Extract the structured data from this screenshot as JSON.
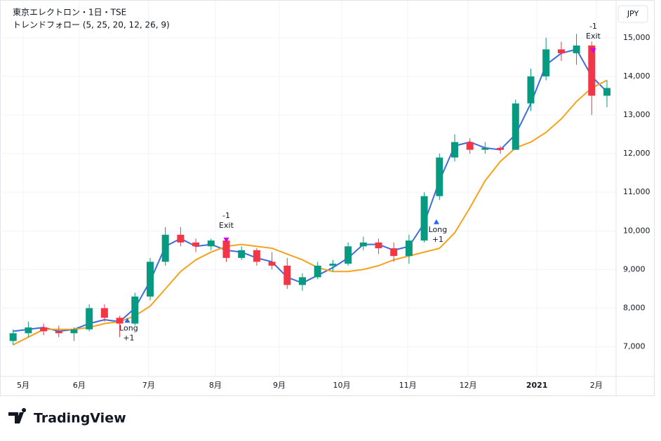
{
  "chart_data": {
    "type": "candlestick",
    "title": "東京エレクトロン・1日・TSE",
    "subtitle": "トレンドフォロー (5, 25, 20, 12, 26, 9)",
    "currency": "JPY",
    "brand": "TradingView",
    "xlim": [
      0,
      200
    ],
    "xticks": [
      {
        "value": 5.3,
        "label": "5月"
      },
      {
        "value": 23.7,
        "label": "6月"
      },
      {
        "value": 46.5,
        "label": "7月"
      },
      {
        "value": 68.4,
        "label": "8月"
      },
      {
        "value": 89.4,
        "label": "9月"
      },
      {
        "value": 109.9,
        "label": "10月"
      },
      {
        "value": 131.6,
        "label": "11月"
      },
      {
        "value": 151.4,
        "label": "12月"
      },
      {
        "value": 174,
        "label": "2021"
      },
      {
        "value": 193.5,
        "label": "2月"
      }
    ],
    "ylim": [
      6230,
      15960
    ],
    "yticks": [
      {
        "value": 7000,
        "label": "7,000"
      },
      {
        "value": 8000,
        "label": "8,000"
      },
      {
        "value": 9000,
        "label": "9,000"
      },
      {
        "value": 10000,
        "label": "10,000"
      },
      {
        "value": 11000,
        "label": "11,000"
      },
      {
        "value": 12000,
        "label": "12,000"
      },
      {
        "value": 13000,
        "label": "13,000"
      },
      {
        "value": 14000,
        "label": "14,000"
      },
      {
        "value": 15000,
        "label": "15,000"
      }
    ],
    "grid": true,
    "up_color": "#089981",
    "down_color": "#f23645",
    "x": [
      2,
      7,
      12,
      17,
      22,
      27,
      32,
      37,
      42,
      47,
      52,
      57,
      62,
      67,
      72,
      77,
      82,
      87,
      92,
      97,
      102,
      107,
      112,
      117,
      122,
      127,
      132,
      137,
      142,
      147,
      152,
      157,
      162,
      167,
      172,
      177,
      182,
      187,
      192,
      197
    ],
    "open": [
      7150,
      7350,
      7500,
      7400,
      7350,
      7450,
      8000,
      7750,
      7600,
      8300,
      9200,
      9900,
      9700,
      9600,
      9750,
      9300,
      9500,
      9200,
      9100,
      8600,
      8800,
      9100,
      9150,
      9600,
      9700,
      9550,
      9350,
      9750,
      10900,
      11900,
      12300,
      12100,
      12150,
      12100,
      13300,
      14000,
      14700,
      14600,
      14800,
      13500
    ],
    "high": [
      7450,
      7650,
      7600,
      7550,
      7500,
      8100,
      8100,
      7800,
      8400,
      9300,
      10100,
      10100,
      9800,
      9800,
      9800,
      9600,
      9550,
      9450,
      9300,
      8900,
      9200,
      9250,
      9700,
      9850,
      9800,
      9700,
      9900,
      11000,
      12000,
      12500,
      12400,
      12300,
      12200,
      13400,
      14200,
      15000,
      14900,
      15100,
      14900,
      13900
    ],
    "low": [
      7050,
      7250,
      7300,
      7250,
      7150,
      7400,
      7650,
      7250,
      7550,
      8200,
      9100,
      9600,
      9450,
      9500,
      9200,
      9250,
      9100,
      9000,
      8500,
      8450,
      8750,
      8950,
      9100,
      9500,
      9400,
      9200,
      9150,
      9700,
      10800,
      11800,
      12000,
      12000,
      12000,
      12100,
      13100,
      13900,
      14400,
      14300,
      13000,
      13200
    ],
    "close": [
      7350,
      7500,
      7400,
      7350,
      7450,
      8000,
      7750,
      7600,
      8300,
      9200,
      9900,
      9700,
      9600,
      9750,
      9300,
      9500,
      9200,
      9100,
      8600,
      8800,
      9100,
      9150,
      9600,
      9700,
      9550,
      9350,
      9750,
      10900,
      11900,
      12300,
      12100,
      12150,
      12100,
      13300,
      14000,
      14700,
      14600,
      14800,
      13500,
      13700
    ],
    "lines": [
      {
        "color": "#3d6be0",
        "values": [
          7400,
          7450,
          7500,
          7400,
          7450,
          7600,
          7700,
          7650,
          8000,
          8700,
          9600,
          9800,
          9600,
          9650,
          9500,
          9450,
          9300,
          9200,
          8800,
          8650,
          8850,
          9050,
          9300,
          9650,
          9650,
          9500,
          9600,
          10200,
          11300,
          12200,
          12300,
          12150,
          12100,
          12500,
          13300,
          14300,
          14600,
          14700,
          14000,
          13600
        ]
      },
      {
        "color": "#f7a21b",
        "values": [
          7050,
          7250,
          7450,
          7450,
          7450,
          7500,
          7600,
          7650,
          7800,
          8050,
          8500,
          8950,
          9250,
          9450,
          9600,
          9650,
          9600,
          9550,
          9400,
          9250,
          9050,
          8950,
          8950,
          9000,
          9100,
          9250,
          9350,
          9450,
          9550,
          9950,
          10600,
          11300,
          11800,
          12150,
          12300,
          12550,
          12900,
          13350,
          13700,
          13900
        ]
      }
    ],
    "signals": [
      {
        "side": "long",
        "color": "#2962ff",
        "x": 39.5,
        "y": 7750,
        "label": "Long",
        "qty": "+1"
      },
      {
        "side": "exit",
        "color": "#d500f9",
        "x": 72,
        "y": 9700,
        "label": "Exit",
        "qty": "-1"
      },
      {
        "side": "long",
        "color": "#2962ff",
        "x": 141,
        "y": 10300,
        "label": "Long",
        "qty": "+1"
      },
      {
        "side": "exit",
        "color": "#d500f9",
        "x": 192.5,
        "y": 14600,
        "label": "Exit",
        "qty": "-1"
      }
    ]
  }
}
